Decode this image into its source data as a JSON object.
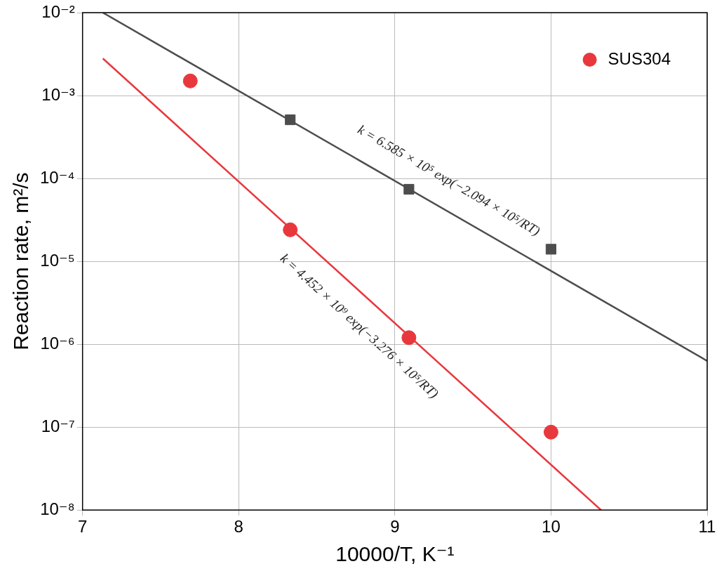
{
  "chart_data": {
    "type": "scatter",
    "xlabel": "10000/T, K⁻¹",
    "ylabel": "Reaction rate, m²/s",
    "log": "y",
    "grid": true,
    "legend": "top right",
    "xlim": [
      7,
      11
    ],
    "xticks": [
      7,
      8,
      9,
      10,
      11
    ],
    "ylim": [
      1e-08,
      0.01
    ],
    "yticks": [
      {
        "value": 1e-08,
        "label": "10⁻⁸"
      },
      {
        "value": 1e-07,
        "label": "10⁻⁷"
      },
      {
        "value": 1e-06,
        "label": "10⁻⁶"
      },
      {
        "value": 1e-05,
        "label": "10⁻⁵"
      },
      {
        "value": 0.0001,
        "label": "10⁻⁴"
      },
      {
        "value": 0.001,
        "label": "10⁻³"
      },
      {
        "value": 0.01,
        "label": "10⁻²"
      }
    ],
    "series": [
      {
        "marker": "square",
        "color": "#4d4d4d",
        "x": [
          8.33,
          9.09,
          10.0
        ],
        "values": [
          0.00051,
          7.4e-05,
          1.4e-05
        ]
      },
      {
        "marker": "circle",
        "name": "SUS304",
        "color": "#e8383d",
        "x": [
          7.69,
          8.33,
          9.09,
          10.0
        ],
        "values": [
          0.0015,
          2.4e-05,
          1.2e-06,
          8.7e-08
        ]
      },
      {
        "type": "line",
        "marker": "none",
        "color": "#4d4d4d",
        "x": [
          7.13,
          11
        ],
        "values": [
          0.01,
          6.3e-07
        ]
      },
      {
        "type": "line",
        "marker": "none",
        "color": "#e8383d",
        "x": [
          7.13,
          10.32
        ],
        "values": [
          0.0028,
          1e-08
        ]
      }
    ],
    "annotations": [
      "k = 6.585 × 10⁵ exp(−2.094 × 10⁵/RT)",
      "k = 4.452 × 10⁹ exp(−3.276 × 10⁵/RT)"
    ]
  }
}
